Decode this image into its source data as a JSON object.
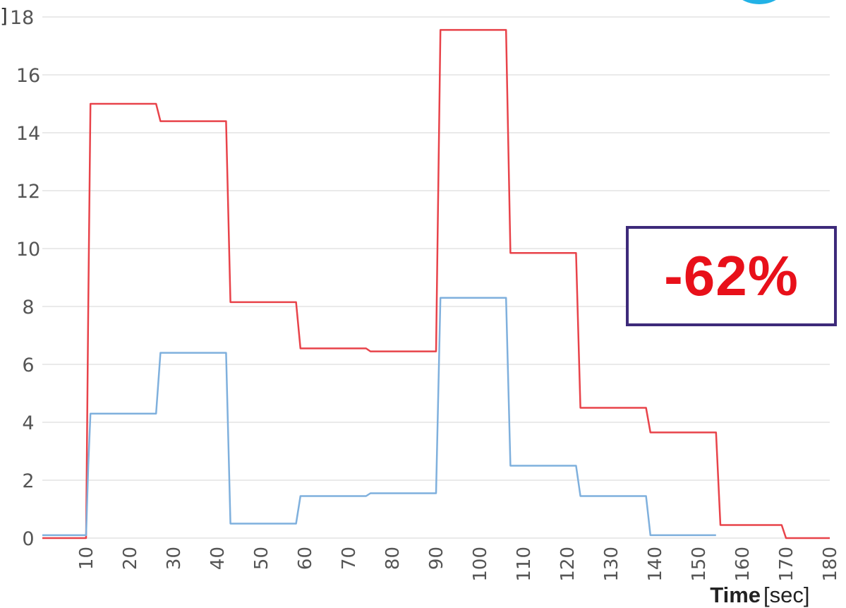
{
  "chart_data": {
    "type": "line",
    "xlabel": "Time",
    "xlabel_unit": "[sec]",
    "ylabel_bracket": "]",
    "xlim": [
      0,
      180
    ],
    "ylim": [
      0,
      18
    ],
    "x_ticks": [
      10,
      20,
      30,
      40,
      50,
      60,
      70,
      80,
      90,
      100,
      110,
      120,
      130,
      140,
      150,
      160,
      170,
      180
    ],
    "y_ticks": [
      0,
      2,
      4,
      6,
      8,
      10,
      12,
      14,
      16,
      18
    ],
    "grid": true,
    "series": [
      {
        "color": "#e8434a",
        "x": [
          0,
          10,
          10.5,
          11,
          26,
          27,
          42,
          43,
          58,
          59,
          74,
          75,
          90,
          91,
          106,
          107,
          122,
          123,
          138,
          139,
          154,
          155,
          169,
          170,
          180
        ],
        "y": [
          0,
          0,
          8,
          15,
          15,
          14.4,
          14.4,
          8.15,
          8.15,
          6.55,
          6.55,
          6.45,
          6.45,
          17.55,
          17.55,
          9.85,
          9.85,
          4.5,
          4.5,
          3.65,
          3.65,
          0.45,
          0.45,
          0,
          0
        ]
      },
      {
        "color": "#7fb0dd",
        "x": [
          0,
          10,
          10.5,
          11,
          26,
          27,
          42,
          43,
          58,
          59,
          74,
          75,
          90,
          91,
          106,
          107,
          122,
          123,
          138,
          139,
          154
        ],
        "y": [
          0.1,
          0.1,
          2.5,
          4.3,
          4.3,
          6.4,
          6.4,
          0.5,
          0.5,
          1.45,
          1.45,
          1.55,
          1.55,
          8.3,
          8.3,
          2.5,
          2.5,
          1.45,
          1.45,
          0.1,
          0.1
        ]
      }
    ]
  },
  "callout": {
    "text": "-62%",
    "color": "#e8101a"
  },
  "logo": {
    "icon": "partial-circle-logo-icon",
    "color": "#22b2e6"
  }
}
